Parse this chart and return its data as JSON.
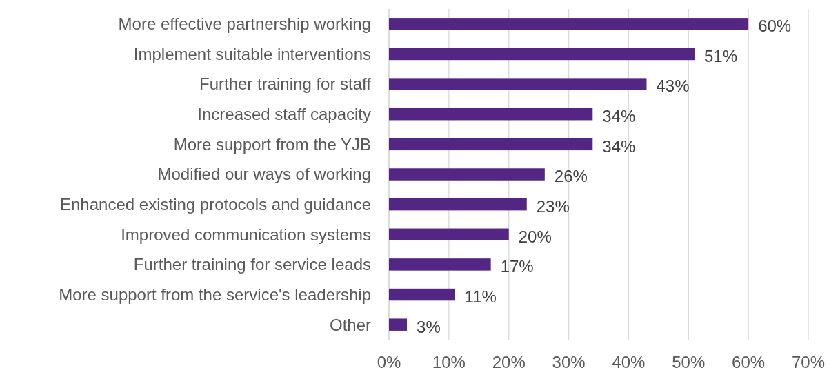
{
  "chart_data": {
    "type": "bar",
    "orientation": "horizontal",
    "categories": [
      "More effective partnership working",
      "Implement suitable interventions",
      "Further training for staff",
      "Increased staff capacity",
      "More support from the YJB",
      "Modified our ways of working",
      "Enhanced existing protocols and guidance",
      "Improved communication systems",
      "Further training for service leads",
      "More support from the service's leadership",
      "Other"
    ],
    "values": [
      60,
      51,
      43,
      34,
      34,
      26,
      23,
      20,
      17,
      11,
      3
    ],
    "value_labels": [
      "60%",
      "51%",
      "43%",
      "34%",
      "34%",
      "26%",
      "23%",
      "20%",
      "17%",
      "11%",
      "3%"
    ],
    "color": "#532683",
    "xlim": [
      0,
      70
    ],
    "xticks": [
      {
        "value": 0,
        "label": "0%"
      },
      {
        "value": 10,
        "label": "10%"
      },
      {
        "value": 20,
        "label": "20%"
      },
      {
        "value": 30,
        "label": "30%"
      },
      {
        "value": 40,
        "label": "40%"
      },
      {
        "value": 50,
        "label": "50%"
      },
      {
        "value": 60,
        "label": "60%"
      },
      {
        "value": 70,
        "label": "70%"
      }
    ],
    "grid": "x"
  }
}
